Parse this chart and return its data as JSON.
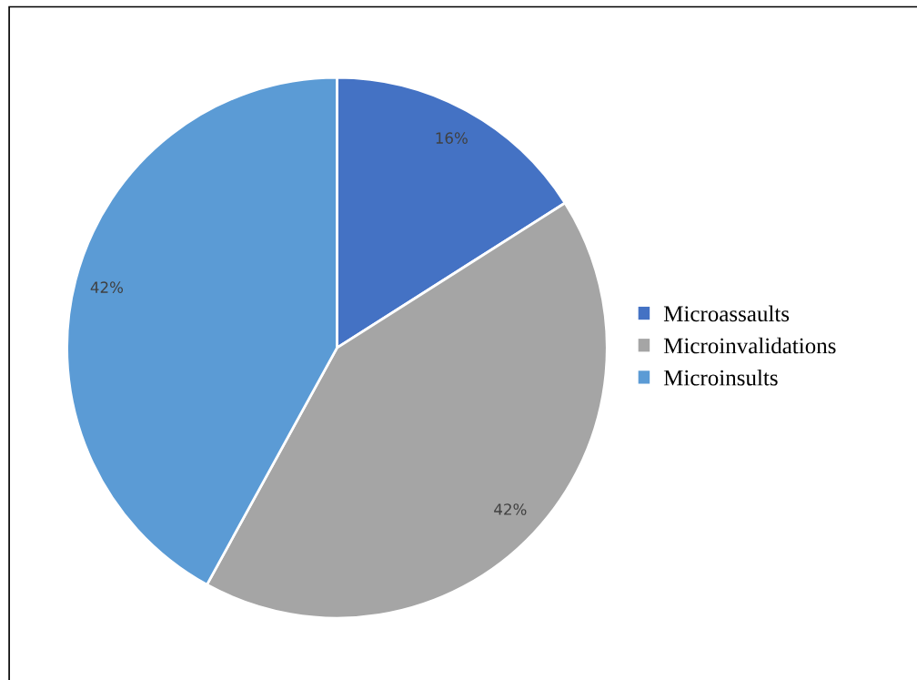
{
  "chart_data": {
    "type": "pie",
    "categories": [
      "Microassaults",
      "Microinvalidations",
      "Microinsults"
    ],
    "values": [
      16,
      42,
      42
    ],
    "colors": [
      "#4472c4",
      "#a5a5a5",
      "#5b9bd5"
    ],
    "value_labels": [
      "16%",
      "42%",
      "42%"
    ],
    "legend": "right"
  }
}
